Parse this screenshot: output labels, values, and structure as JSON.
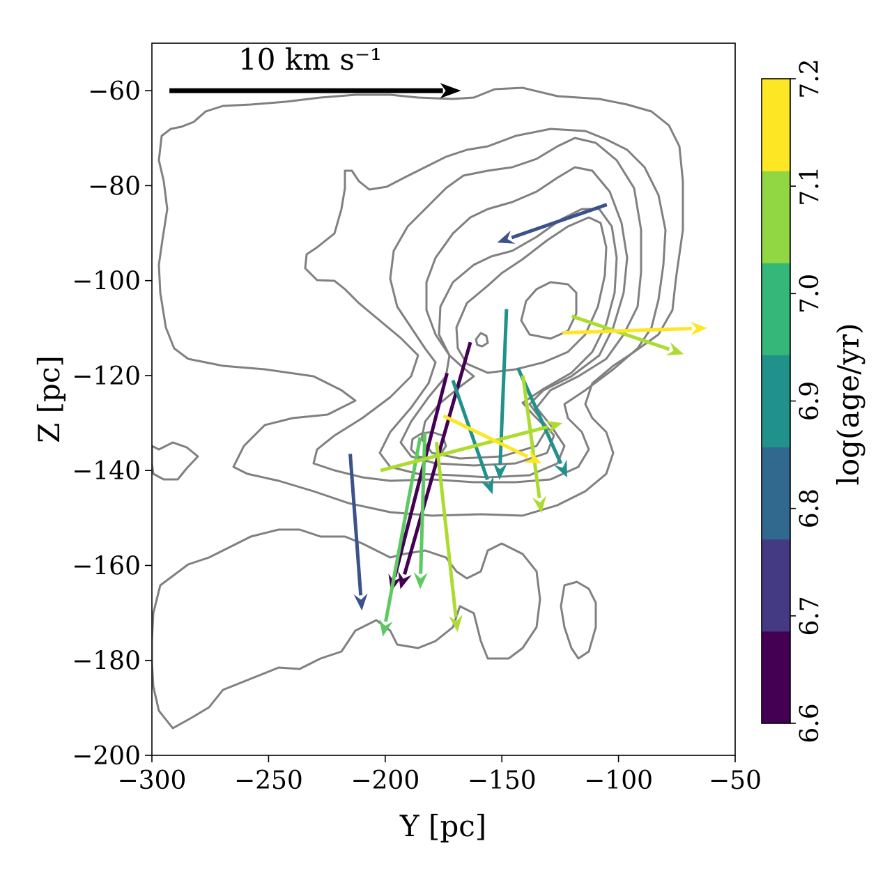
{
  "chart_data": {
    "type": "quiver",
    "xlabel": "Y [pc]",
    "ylabel": "Z [pc]",
    "xlim": [
      -300,
      -50
    ],
    "ylim": [
      -200,
      -50
    ],
    "x_ticks": [
      -300,
      -250,
      -200,
      -150,
      -100,
      -50
    ],
    "y_ticks": [
      -200,
      -180,
      -160,
      -140,
      -120,
      -100,
      -80,
      -60
    ],
    "x_tick_labels": [
      "−300",
      "−250",
      "−200",
      "−150",
      "−100",
      "−50"
    ],
    "y_tick_labels": [
      "−200",
      "−180",
      "−160",
      "−140",
      "−120",
      "−100",
      "−80",
      "−60"
    ],
    "grid": false,
    "reference_arrow": {
      "label": "10 km s⁻¹",
      "x": -292.5,
      "y": -60,
      "dx": 125,
      "dy": 0,
      "color": "#000000"
    },
    "colorbar": {
      "label": "log(age/yr)",
      "ticks": [
        "6.6",
        "6.7",
        "6.8",
        "6.9",
        "7.0",
        "7.1",
        "7.2"
      ],
      "colors": [
        "#440154",
        "#443a83",
        "#31688e",
        "#21918c",
        "#35b779",
        "#90d743",
        "#fde725"
      ]
    },
    "arrow_colors": {
      "6.65": "#440154",
      "6.75": "#3b528b",
      "6.85": "#2c728e",
      "6.95": "#21918c",
      "7.05": "#5ec962",
      "7.1": "#addc30",
      "7.15": "#fde725"
    },
    "arrows": [
      {
        "x": -105,
        "y": -84.0,
        "dx": -47,
        "dy": -8.0,
        "log_age": 6.75
      },
      {
        "x": -215,
        "y": -136.5,
        "dx": 5,
        "dy": -33.0,
        "log_age": 6.75
      },
      {
        "x": -163.5,
        "y": -113.0,
        "dx": -30,
        "dy": -52.0,
        "log_age": 6.65
      },
      {
        "x": -173.5,
        "y": -119.5,
        "dx": -24,
        "dy": -46.0,
        "log_age": 6.65
      },
      {
        "x": -148,
        "y": -106.0,
        "dx": -3,
        "dy": -36.0,
        "log_age": 6.95
      },
      {
        "x": -143,
        "y": -118.5,
        "dx": 21,
        "dy": -23.0,
        "log_age": 6.95
      },
      {
        "x": -171,
        "y": -121.0,
        "dx": 17,
        "dy": -24.0,
        "log_age": 6.95
      },
      {
        "x": -185,
        "y": -133.0,
        "dx": -16,
        "dy": -42.0,
        "log_age": 7.05
      },
      {
        "x": -183,
        "y": -132.0,
        "dx": -2,
        "dy": -33.0,
        "log_age": 7.05
      },
      {
        "x": -202,
        "y": -140.0,
        "dx": 78,
        "dy": 10.0,
        "log_age": 7.1
      },
      {
        "x": -141,
        "y": -120.0,
        "dx": 8,
        "dy": -29.0,
        "log_age": 7.1
      },
      {
        "x": -120,
        "y": -107.5,
        "dx": 48,
        "dy": -8.0,
        "log_age": 7.1
      },
      {
        "x": -178,
        "y": -134.0,
        "dx": 9,
        "dy": -40.0,
        "log_age": 7.1
      },
      {
        "x": -175,
        "y": -128.5,
        "dx": 42,
        "dy": -10.0,
        "log_age": 7.15
      },
      {
        "x": -124,
        "y": -111.0,
        "dx": 62,
        "dy": 1.0,
        "log_age": 7.15
      }
    ]
  }
}
